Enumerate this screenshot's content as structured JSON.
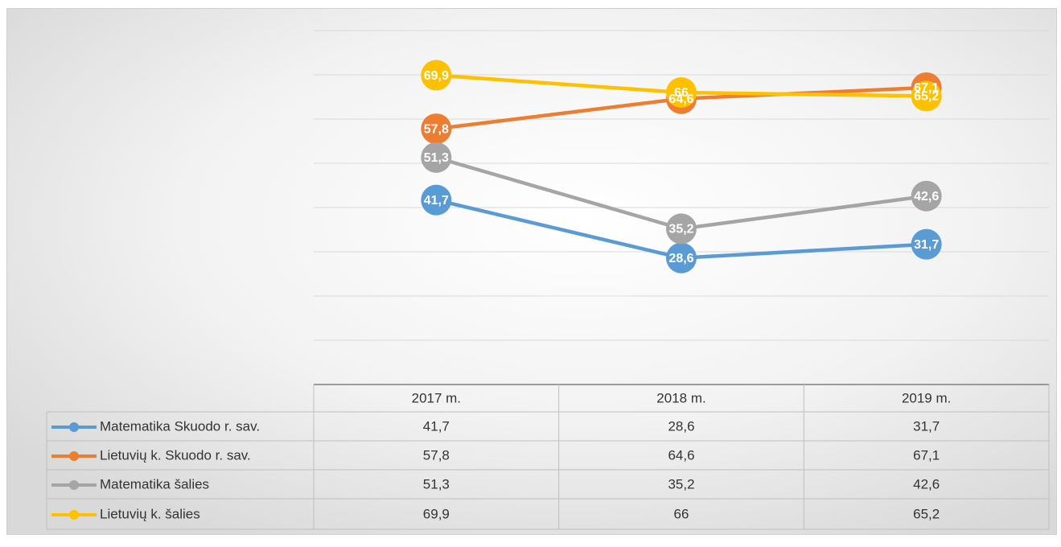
{
  "chart_data": {
    "type": "line",
    "categories": [
      "2017 m.",
      "2018 m.",
      "2019 m."
    ],
    "series": [
      {
        "name": "Matematika Skuodo r. sav.",
        "color": "#5b9bd5",
        "values": [
          41.7,
          28.6,
          31.7
        ],
        "value_labels": [
          "41,7",
          "28,6",
          "31,7"
        ]
      },
      {
        "name": "Lietuvių k. Skuodo r. sav.",
        "color": "#ed7d31",
        "values": [
          57.8,
          64.6,
          67.1
        ],
        "value_labels": [
          "57,8",
          "64,6",
          "67,1"
        ]
      },
      {
        "name": "Matematika šalies",
        "color": "#a5a5a5",
        "values": [
          51.3,
          35.2,
          42.6
        ],
        "value_labels": [
          "51,3",
          "35,2",
          "42,6"
        ]
      },
      {
        "name": "Lietuvių k. šalies",
        "color": "#ffc000",
        "values": [
          69.9,
          66,
          65.2
        ],
        "value_labels": [
          "69,9",
          "66",
          "65,2"
        ]
      }
    ],
    "ylim": [
      0,
      80
    ],
    "yticks": [
      0,
      10,
      20,
      30,
      40,
      50,
      60,
      70,
      80
    ],
    "grid": true
  }
}
